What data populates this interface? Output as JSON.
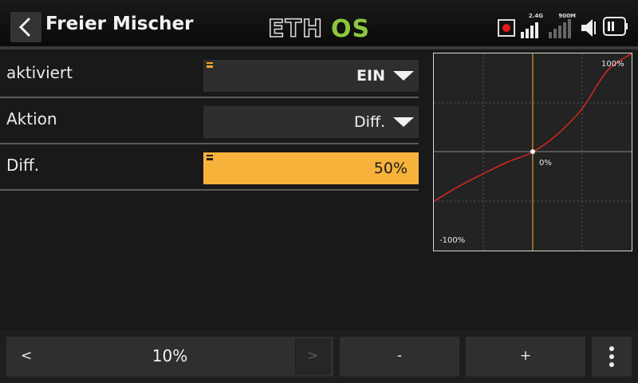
{
  "header": {
    "title": "Freier Mischer",
    "logo": "ETHOS",
    "status": {
      "rssi_2g4_label": "2.4G",
      "rssi_900m_label": "900M"
    }
  },
  "form": {
    "rows": [
      {
        "label": "aktiviert",
        "value": "EIN",
        "dropdown": true
      },
      {
        "label": "Aktion",
        "value": "Diff.",
        "dropdown": true
      },
      {
        "label": "Diff.",
        "value": "50%",
        "dropdown": false
      }
    ]
  },
  "graph": {
    "top_label": "100%",
    "center_label": "0%",
    "bottom_label": "-100%"
  },
  "chart_data": {
    "type": "line",
    "x": [
      -100,
      -75,
      -50,
      -25,
      0,
      25,
      50,
      75,
      100
    ],
    "series": [
      {
        "values": [
          -50,
          -35,
          -22,
          -10,
          0,
          18,
          44,
          82,
          100
        ]
      }
    ],
    "xlim": [
      -100,
      100
    ],
    "ylim": [
      -100,
      100
    ],
    "grid": true,
    "title": "",
    "xlabel": "",
    "ylabel": ""
  },
  "bottom_bar": {
    "prev_label": "<",
    "step_value": "10%",
    "next_label": ">",
    "minus_label": "-",
    "plus_label": "+"
  },
  "colors": {
    "accent": "#f7b23b",
    "curve": "#d6281f",
    "record_dot": "#e01b1b",
    "logo_green": "#8dc63f"
  },
  "icons": [
    "back-arrow-icon",
    "record-icon",
    "signal-2g4-icon",
    "signal-900m-icon",
    "speaker-icon",
    "battery-icon",
    "menu-lines-icon",
    "dropdown-arrow-icon",
    "more-vertical-icon"
  ]
}
